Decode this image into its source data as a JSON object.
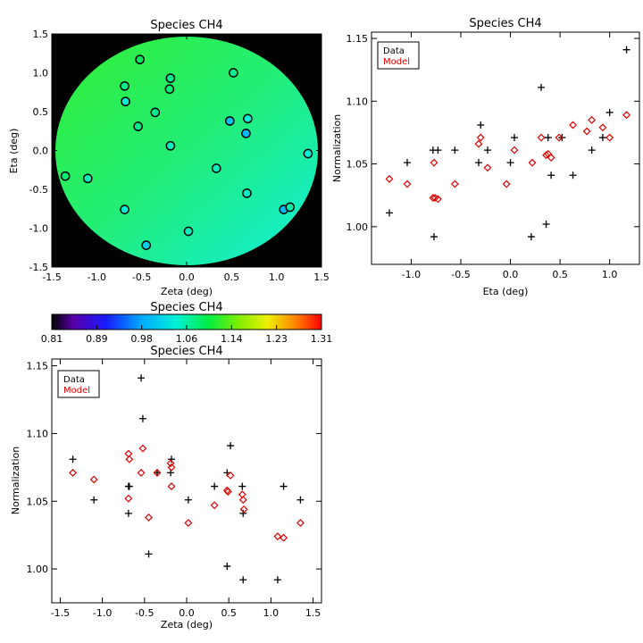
{
  "chart_data": [
    {
      "type": "scatter",
      "title": "Species CH4",
      "xlabel": "Zeta (deg)",
      "ylabel": "Eta (deg)",
      "xlim": [
        -1.5,
        1.5
      ],
      "ylim": [
        -1.5,
        1.5
      ],
      "xticks": [
        "-1.5",
        "-1.0",
        "-0.5",
        "0.0",
        "0.5",
        "1.0",
        "1.5"
      ],
      "yticks": [
        "-1.5",
        "-1.0",
        "-0.5",
        "0.0",
        "0.5",
        "1.0",
        "1.5"
      ],
      "background_color": "#000000",
      "disk_color": "#2EEE52",
      "colorbar": {
        "title": "Species CH4",
        "ticks": [
          "0.81",
          "0.89",
          "0.98",
          "1.06",
          "1.14",
          "1.23",
          "1.31"
        ],
        "min": 0.81,
        "max": 1.31
      },
      "points": [
        {
          "x": -0.52,
          "y": 1.17,
          "value": 1.09
        },
        {
          "x": -0.18,
          "y": 0.93,
          "value": 1.07
        },
        {
          "x": 0.52,
          "y": 1.0,
          "value": 1.07
        },
        {
          "x": -0.69,
          "y": 0.83,
          "value": 1.07
        },
        {
          "x": -0.19,
          "y": 0.79,
          "value": 1.08
        },
        {
          "x": -0.68,
          "y": 0.63,
          "value": 1.04
        },
        {
          "x": -0.35,
          "y": 0.49,
          "value": 1.07
        },
        {
          "x": 0.48,
          "y": 0.38,
          "value": 1.0
        },
        {
          "x": 0.68,
          "y": 0.41,
          "value": 1.04
        },
        {
          "x": -0.54,
          "y": 0.31,
          "value": 1.07
        },
        {
          "x": 0.66,
          "y": 0.22,
          "value": 0.99
        },
        {
          "x": -0.18,
          "y": 0.06,
          "value": 1.05
        },
        {
          "x": 1.35,
          "y": -0.04,
          "value": 1.04
        },
        {
          "x": 0.33,
          "y": -0.23,
          "value": 1.05
        },
        {
          "x": -1.35,
          "y": -0.33,
          "value": 1.08
        },
        {
          "x": -1.1,
          "y": -0.36,
          "value": 1.05
        },
        {
          "x": 0.67,
          "y": -0.55,
          "value": 1.05
        },
        {
          "x": 1.08,
          "y": -0.76,
          "value": 0.99
        },
        {
          "x": 1.15,
          "y": -0.73,
          "value": 1.06
        },
        {
          "x": -0.69,
          "y": -0.76,
          "value": 1.04
        },
        {
          "x": 0.02,
          "y": -1.04,
          "value": 1.05
        },
        {
          "x": -0.45,
          "y": -1.22,
          "value": 1.01
        }
      ]
    },
    {
      "type": "scatter",
      "title": "Species CH4",
      "xlabel": "Eta (deg)",
      "ylabel": "Normalization",
      "xlim": [
        -1.4,
        1.3
      ],
      "ylim": [
        0.97,
        1.155
      ],
      "xticks": [
        "-1.0",
        "-0.5",
        "0.0",
        "0.5",
        "1.0"
      ],
      "yticks": [
        "1.00",
        "1.05",
        "1.10",
        "1.15"
      ],
      "legend": {
        "position": "top-left",
        "entries": [
          {
            "name": "Data",
            "color": "#000000"
          },
          {
            "name": "Model",
            "color": "#E00000"
          }
        ]
      },
      "series": [
        {
          "name": "Data",
          "marker": "plus",
          "color": "#000000",
          "x": [
            1.17,
            0.31,
            -0.3,
            -0.78,
            -0.73,
            0.04,
            1.0,
            0.82,
            0.52,
            -0.56,
            -0.23,
            -1.04,
            -0.32,
            0.0,
            0.38,
            0.21,
            0.63,
            0.41,
            0.36,
            -0.77,
            -1.22,
            0.93
          ],
          "y": [
            1.141,
            1.111,
            1.081,
            1.061,
            1.061,
            1.071,
            1.091,
            1.061,
            1.071,
            1.061,
            1.061,
            1.051,
            1.051,
            1.051,
            1.071,
            0.992,
            1.041,
            1.041,
            1.002,
            0.992,
            1.011,
            1.071
          ]
        },
        {
          "name": "Model",
          "marker": "diamond",
          "color": "#E00000",
          "x": [
            -1.22,
            -1.04,
            -0.78,
            -0.76,
            -0.73,
            -0.56,
            -0.32,
            -0.3,
            -0.23,
            -0.04,
            0.04,
            0.22,
            0.31,
            0.36,
            0.38,
            0.41,
            0.49,
            0.63,
            0.77,
            0.82,
            0.93,
            1.0,
            1.17,
            -0.77
          ],
          "y": [
            1.038,
            1.034,
            1.023,
            1.023,
            1.022,
            1.034,
            1.066,
            1.071,
            1.047,
            1.034,
            1.061,
            1.051,
            1.071,
            1.057,
            1.058,
            1.055,
            1.071,
            1.081,
            1.076,
            1.085,
            1.079,
            1.071,
            1.089,
            1.051
          ]
        }
      ]
    },
    {
      "type": "scatter",
      "title": "Species CH4",
      "xlabel": "Zeta (deg)",
      "ylabel": "Normalization",
      "xlim": [
        -1.6,
        1.6
      ],
      "ylim": [
        0.975,
        1.155
      ],
      "xticks": [
        "-1.5",
        "-1.0",
        "-0.5",
        "0.0",
        "0.5",
        "1.0",
        "1.5"
      ],
      "yticks": [
        "1.00",
        "1.05",
        "1.10",
        "1.15"
      ],
      "legend": {
        "position": "top-left",
        "entries": [
          {
            "name": "Data",
            "color": "#000000"
          },
          {
            "name": "Model",
            "color": "#E00000"
          }
        ]
      },
      "series": [
        {
          "name": "Data",
          "marker": "plus",
          "color": "#000000",
          "x": [
            -0.54,
            -0.52,
            -1.35,
            -0.69,
            -0.68,
            -0.18,
            -0.19,
            -0.35,
            0.48,
            -0.69,
            0.02,
            0.33,
            0.52,
            -1.1,
            0.66,
            1.15,
            1.35,
            0.67,
            -0.45,
            0.48,
            0.67,
            1.08
          ],
          "y": [
            1.141,
            1.111,
            1.081,
            1.061,
            1.061,
            1.081,
            1.071,
            1.071,
            1.071,
            1.041,
            1.051,
            1.061,
            1.091,
            1.051,
            1.061,
            1.061,
            1.051,
            1.041,
            1.011,
            1.002,
            0.992,
            0.992
          ]
        },
        {
          "name": "Model",
          "marker": "diamond",
          "color": "#E00000",
          "x": [
            -1.35,
            -1.1,
            -0.69,
            -0.68,
            -0.69,
            -0.54,
            -0.52,
            -0.45,
            -0.35,
            -0.19,
            -0.18,
            -0.18,
            0.02,
            0.33,
            0.48,
            0.52,
            0.49,
            0.66,
            0.67,
            0.68,
            1.08,
            1.15,
            1.35
          ],
          "y": [
            1.071,
            1.066,
            1.085,
            1.081,
            1.052,
            1.071,
            1.089,
            1.038,
            1.071,
            1.078,
            1.075,
            1.061,
            1.034,
            1.047,
            1.058,
            1.069,
            1.057,
            1.055,
            1.051,
            1.044,
            1.024,
            1.023,
            1.034
          ]
        }
      ]
    }
  ]
}
